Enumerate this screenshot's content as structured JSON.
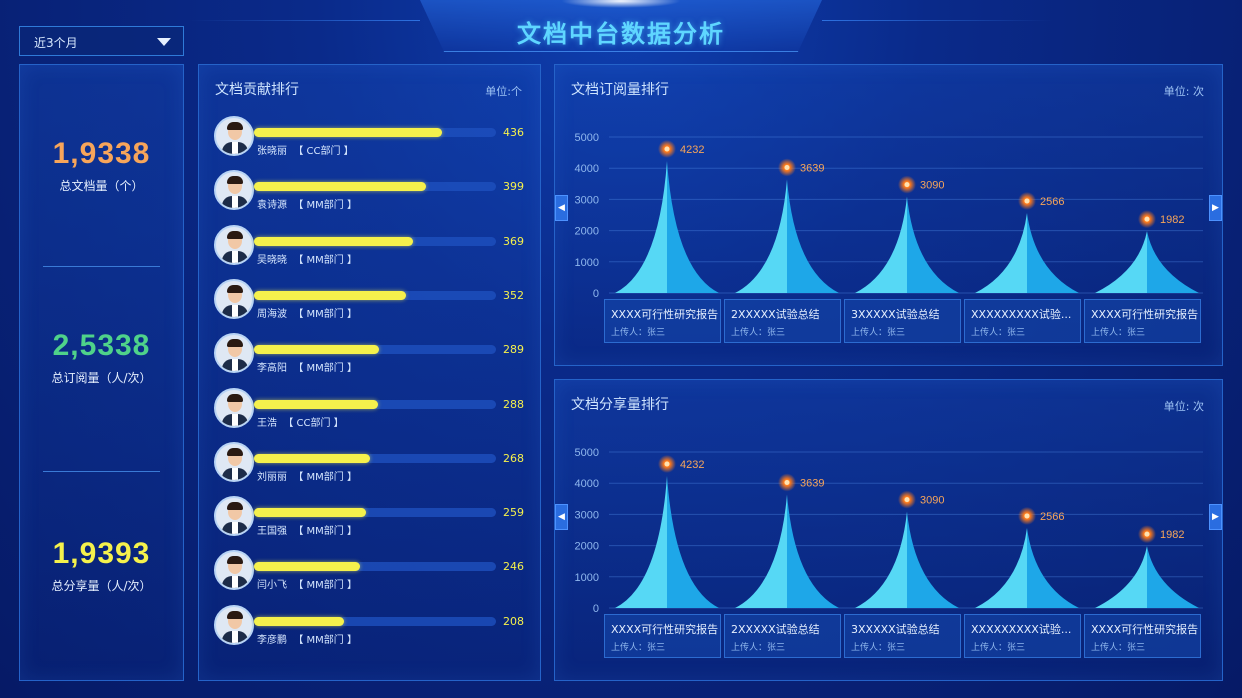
{
  "header": {
    "title": "文档中台数据分析"
  },
  "filter": {
    "selected": "近3个月",
    "icon": "chevron-down-icon"
  },
  "kpis": [
    {
      "value": "1,9338",
      "label": "总文档量（个）",
      "color": "#f7a55a"
    },
    {
      "value": "2,5338",
      "label": "总订阅量（人/次）",
      "color": "#4fd28a"
    },
    {
      "value": "1,9393",
      "label": "总分享量（人/次）",
      "color": "#f5f14c"
    }
  ],
  "contribution": {
    "title": "文档贡献排行",
    "unit": "单位:个",
    "max": 436,
    "rows": [
      {
        "name": "张晓丽",
        "dept": "【 CC部门 】",
        "value": 436
      },
      {
        "name": "袁诗源",
        "dept": "【 MM部门 】",
        "value": 399
      },
      {
        "name": "吴晓晓",
        "dept": "【 MM部门 】",
        "value": 369
      },
      {
        "name": "周海波",
        "dept": "【 MM部门 】",
        "value": 352
      },
      {
        "name": "李高阳",
        "dept": "【 MM部门 】",
        "value": 289
      },
      {
        "name": "王浩",
        "dept": "【 CC部门 】",
        "value": 288
      },
      {
        "name": "刘丽丽",
        "dept": "【 MM部门 】",
        "value": 268
      },
      {
        "name": "王国强",
        "dept": "【 MM部门 】",
        "value": 259
      },
      {
        "name": "闫小飞",
        "dept": "【 MM部门 】",
        "value": 246
      },
      {
        "name": "李彦鹏",
        "dept": "【 MM部门 】",
        "value": 208
      }
    ]
  },
  "chart_data": [
    {
      "type": "bar",
      "title": "文档订阅量排行",
      "unit": "单位:  次",
      "ylim": [
        0,
        5000
      ],
      "yticks": [
        "5000",
        "4000",
        "3000",
        "2000",
        "1000",
        "0"
      ],
      "categories": [
        "XXXX可行性研究报告",
        "2XXXXX试验总结",
        "3XXXXX试验总结",
        "XXXXXXXXX试验...",
        "XXXX可行性研究报告"
      ],
      "values": [
        4232,
        3639,
        3090,
        2566,
        1982
      ],
      "uploader": [
        "上传人：张三",
        "上传人：张三",
        "上传人：张三",
        "上传人：张三",
        "上传人：张三"
      ]
    },
    {
      "type": "bar",
      "title": "文档分享量排行",
      "unit": "单位:  次",
      "ylim": [
        0,
        5000
      ],
      "yticks": [
        "5000",
        "4000",
        "3000",
        "2000",
        "1000",
        "0"
      ],
      "categories": [
        "XXXX可行性研究报告",
        "2XXXXX试验总结",
        "3XXXXX试验总结",
        "XXXXXXXXX试验...",
        "XXXX可行性研究报告"
      ],
      "values": [
        4232,
        3639,
        3090,
        2566,
        1982
      ],
      "uploader": [
        "上传人：张三",
        "上传人：张三",
        "上传人：张三",
        "上传人：张三",
        "上传人：张三"
      ]
    }
  ],
  "colors": {
    "accent": "#5fd6ff",
    "bar": "#f5f14c",
    "cone_light": "#56d8f5",
    "cone_dark": "#1ea7e8",
    "point": "#ff8a2a"
  }
}
